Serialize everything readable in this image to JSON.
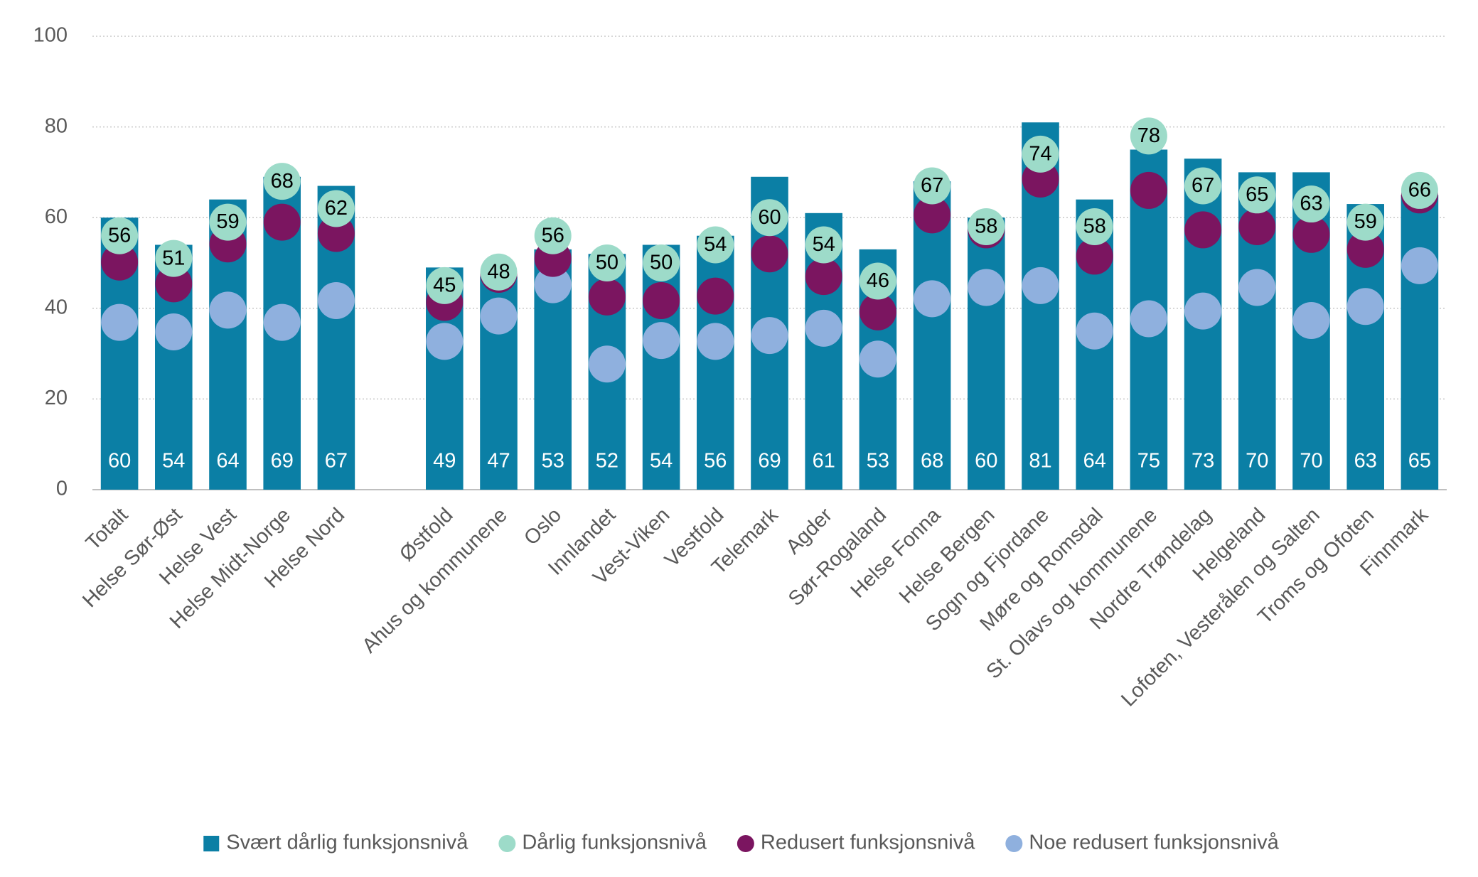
{
  "chart_data": {
    "type": "bar",
    "categories": [
      "Totalt",
      "Helse Sør-Øst",
      "Helse Vest",
      "Helse Midt-Norge",
      "Helse Nord",
      null,
      "Østfold",
      "Ahus og kommunene",
      "Oslo",
      "Innlandet",
      "Vest-Viken",
      "Vestfold",
      "Telemark",
      "Agder",
      "Sør-Rogaland",
      "Helse Fonna",
      "Helse Bergen",
      "Sogn og Fjordane",
      "Møre og Romsdal",
      "St. Olavs og kommunene",
      "Nordre Trøndelag",
      "Helgeland",
      "Lofoten, Vesterålen og Salten",
      "Troms og Ofoten",
      "Finnmark"
    ],
    "series": [
      {
        "name": "Svært dårlig funksjonsnivå",
        "type": "bar",
        "color": "#0b7fa5",
        "label_color": "#ffffff",
        "values": [
          60,
          54,
          64,
          69,
          67,
          null,
          49,
          47,
          53,
          52,
          54,
          56,
          69,
          61,
          53,
          68,
          60,
          81,
          64,
          75,
          73,
          70,
          70,
          63,
          65
        ]
      },
      {
        "name": "Dårlig funksjonsnivå",
        "type": "scatter",
        "color": "#9ddbc9",
        "label_color": "#000000",
        "values": [
          56,
          51,
          59,
          68,
          62,
          null,
          45,
          48,
          56,
          50,
          50,
          54,
          60,
          54,
          46,
          67,
          58,
          74,
          58,
          78,
          67,
          65,
          63,
          59,
          66
        ]
      },
      {
        "name": "Redusert funksjonsnivå",
        "type": "scatter",
        "color": "#7b1560",
        "values": [
          50.2,
          45.4,
          54.2,
          59,
          56.5,
          null,
          41.3,
          47.5,
          51,
          42.5,
          41.7,
          42.7,
          52,
          47,
          39.2,
          60.6,
          57.3,
          68.5,
          51.5,
          66,
          57.3,
          58,
          56.3,
          53,
          65
        ]
      },
      {
        "name": "Noe redusert funksjonsnivå",
        "type": "scatter",
        "color": "#8fb0de",
        "values": [
          36.9,
          34.8,
          39.6,
          36.9,
          41.7,
          null,
          32.7,
          38.3,
          45.2,
          27.7,
          32.9,
          32.7,
          34,
          35.6,
          28.8,
          42.1,
          44.6,
          45,
          35,
          37.7,
          39.4,
          44.6,
          37.3,
          40.4,
          49.4
        ]
      }
    ],
    "draw_order": [
      0,
      3,
      2,
      1
    ],
    "ylim": [
      0,
      100
    ],
    "yticks": [
      0,
      20,
      40,
      60,
      80,
      100
    ],
    "grid": true,
    "legend": "bottom"
  }
}
